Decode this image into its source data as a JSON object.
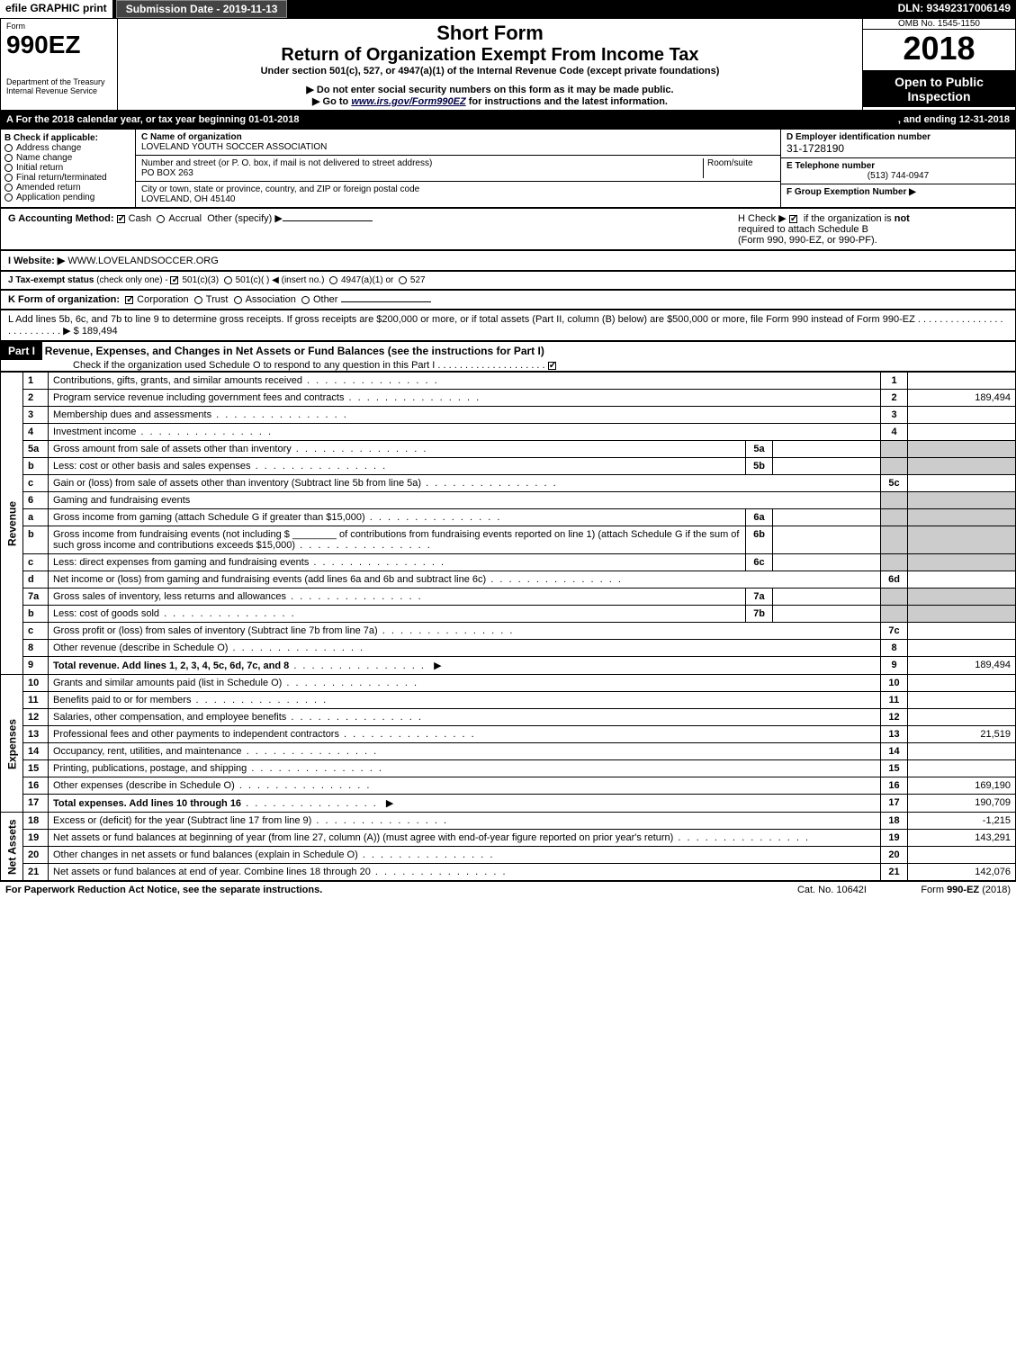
{
  "topbar": {
    "efile": "efile GRAPHIC print",
    "submission": "Submission Date - 2019-11-13",
    "dln": "DLN: 93492317006149"
  },
  "header": {
    "form_label": "Form",
    "form_number": "990EZ",
    "dept1": "Department of the Treasury",
    "dept2": "Internal Revenue Service",
    "short_form": "Short Form",
    "return_title": "Return of Organization Exempt From Income Tax",
    "under_section": "Under section 501(c), 527, or 4947(a)(1) of the Internal Revenue Code (except private foundations)",
    "note1": "▶ Do not enter social security numbers on this form as it may be made public.",
    "note2_pre": "▶ Go to ",
    "note2_link": "www.irs.gov/Form990EZ",
    "note2_post": " for instructions and the latest information.",
    "omb": "OMB No. 1545-1150",
    "year": "2018",
    "open_public": "Open to Public Inspection"
  },
  "section_a": {
    "label": "A  For the 2018 calendar year, or tax year beginning 01-01-2018",
    "ending": ", and ending 12-31-2018"
  },
  "section_b": {
    "heading": "B  Check if applicable:",
    "options": [
      "Address change",
      "Name change",
      "Initial return",
      "Final return/terminated",
      "Amended return",
      "Application pending"
    ]
  },
  "section_c": {
    "name_label": "C Name of organization",
    "org_name": "LOVELAND YOUTH SOCCER ASSOCIATION",
    "street_label": "Number and street (or P. O. box, if mail is not delivered to street address)",
    "room_label": "Room/suite",
    "street": "PO BOX 263",
    "city_label": "City or town, state or province, country, and ZIP or foreign postal code",
    "city": "LOVELAND, OH  45140"
  },
  "section_d": {
    "label": "D Employer identification number",
    "ein": "31-1728190",
    "tel_label": "E Telephone number",
    "phone": "(513) 744-0947",
    "group_label": "F Group Exemption Number   ▶"
  },
  "row_g": {
    "label": "G Accounting Method:",
    "cash": "Cash",
    "accrual": "Accrual",
    "other": "Other (specify) ▶"
  },
  "row_h": {
    "label_pre": "H  Check ▶ ",
    "label_post": " if the organization is ",
    "label_bold": "not",
    "line2": "required to attach Schedule B",
    "line3": "(Form 990, 990-EZ, or 990-PF)."
  },
  "row_i": {
    "label": "I Website: ▶",
    "value": "WWW.LOVELANDSOCCER.ORG"
  },
  "row_j": {
    "label": "J Tax-exempt status",
    "small": "(check only one) -",
    "opt1": "501(c)(3)",
    "opt2": "501(c)(  ) ◀ (insert no.)",
    "opt3": "4947(a)(1) or",
    "opt4": "527"
  },
  "row_k": {
    "label": "K Form of organization:",
    "opts": [
      "Corporation",
      "Trust",
      "Association",
      "Other"
    ]
  },
  "row_l": {
    "text": "L Add lines 5b, 6c, and 7b to line 9 to determine gross receipts. If gross receipts are $200,000 or more, or if total assets (Part II, column (B) below) are $500,000 or more, file Form 990 instead of Form 990-EZ  .   .   .   .   .   .   .   .   .   .   .   .   .   .   .   .   .   .   .   .   .   .   .   .   .   .  ▶ $ 189,494"
  },
  "part1": {
    "part_label": "Part I",
    "title": "Revenue, Expenses, and Changes in Net Assets or Fund Balances (see the instructions for Part I)",
    "check_note": "Check if the organization used Schedule O to respond to any question in this Part I  .   .   .   .   .   .   .   .   .   .   .   .   .   .   .   .   .   .   .   ."
  },
  "sections": {
    "revenue": "Revenue",
    "expenses": "Expenses",
    "netassets": "Net Assets"
  },
  "lines": [
    {
      "n": "1",
      "d": "Contributions, gifts, grants, and similar amounts received",
      "col": "1",
      "amt": ""
    },
    {
      "n": "2",
      "d": "Program service revenue including government fees and contracts",
      "col": "2",
      "amt": "189,494"
    },
    {
      "n": "3",
      "d": "Membership dues and assessments",
      "col": "3",
      "amt": ""
    },
    {
      "n": "4",
      "d": "Investment income",
      "col": "4",
      "amt": ""
    },
    {
      "n": "5a",
      "d": "Gross amount from sale of assets other than inventory",
      "mid": "5a",
      "midv": "",
      "shade": true
    },
    {
      "n": "b",
      "d": "Less: cost or other basis and sales expenses",
      "mid": "5b",
      "midv": "",
      "shade": true
    },
    {
      "n": "c",
      "d": "Gain or (loss) from sale of assets other than inventory (Subtract line 5b from line 5a)",
      "col": "5c",
      "amt": ""
    },
    {
      "n": "6",
      "d": "Gaming and fundraising events",
      "shade": true,
      "noamtcol": true
    },
    {
      "n": "a",
      "d": "Gross income from gaming (attach Schedule G if greater than $15,000)",
      "mid": "6a",
      "midv": "",
      "shade": true
    },
    {
      "n": "b",
      "d": "Gross income from fundraising events (not including $ ________ of contributions from fundraising events reported on line 1) (attach Schedule G if the sum of such gross income and contributions exceeds $15,000)",
      "mid": "6b",
      "midv": "",
      "shade": true,
      "tall": true
    },
    {
      "n": "c",
      "d": "Less: direct expenses from gaming and fundraising events",
      "mid": "6c",
      "midv": "",
      "shade": true
    },
    {
      "n": "d",
      "d": "Net income or (loss) from gaming and fundraising events (add lines 6a and 6b and subtract line 6c)",
      "col": "6d",
      "amt": ""
    },
    {
      "n": "7a",
      "d": "Gross sales of inventory, less returns and allowances",
      "mid": "7a",
      "midv": "",
      "shade": true
    },
    {
      "n": "b",
      "d": "Less: cost of goods sold",
      "mid": "7b",
      "midv": "",
      "shade": true
    },
    {
      "n": "c",
      "d": "Gross profit or (loss) from sales of inventory (Subtract line 7b from line 7a)",
      "col": "7c",
      "amt": ""
    },
    {
      "n": "8",
      "d": "Other revenue (describe in Schedule O)",
      "col": "8",
      "amt": ""
    },
    {
      "n": "9",
      "d": "Total revenue. Add lines 1, 2, 3, 4, 5c, 6d, 7c, and 8",
      "col": "9",
      "amt": "189,494",
      "bold": true,
      "arrow": true
    }
  ],
  "exp_lines": [
    {
      "n": "10",
      "d": "Grants and similar amounts paid (list in Schedule O)",
      "col": "10",
      "amt": ""
    },
    {
      "n": "11",
      "d": "Benefits paid to or for members",
      "col": "11",
      "amt": ""
    },
    {
      "n": "12",
      "d": "Salaries, other compensation, and employee benefits",
      "col": "12",
      "amt": ""
    },
    {
      "n": "13",
      "d": "Professional fees and other payments to independent contractors",
      "col": "13",
      "amt": "21,519"
    },
    {
      "n": "14",
      "d": "Occupancy, rent, utilities, and maintenance",
      "col": "14",
      "amt": ""
    },
    {
      "n": "15",
      "d": "Printing, publications, postage, and shipping",
      "col": "15",
      "amt": ""
    },
    {
      "n": "16",
      "d": "Other expenses (describe in Schedule O)",
      "col": "16",
      "amt": "169,190"
    },
    {
      "n": "17",
      "d": "Total expenses. Add lines 10 through 16",
      "col": "17",
      "amt": "190,709",
      "bold": true,
      "arrow": true
    }
  ],
  "net_lines": [
    {
      "n": "18",
      "d": "Excess or (deficit) for the year (Subtract line 17 from line 9)",
      "col": "18",
      "amt": "-1,215"
    },
    {
      "n": "19",
      "d": "Net assets or fund balances at beginning of year (from line 27, column (A)) (must agree with end-of-year figure reported on prior year's return)",
      "col": "19",
      "amt": "143,291",
      "tall": true
    },
    {
      "n": "20",
      "d": "Other changes in net assets or fund balances (explain in Schedule O)",
      "col": "20",
      "amt": ""
    },
    {
      "n": "21",
      "d": "Net assets or fund balances at end of year. Combine lines 18 through 20",
      "col": "21",
      "amt": "142,076"
    }
  ],
  "footer": {
    "left": "For Paperwork Reduction Act Notice, see the separate instructions.",
    "mid": "Cat. No. 10642I",
    "right_pre": "Form ",
    "right_bold": "990-EZ",
    "right_post": " (2018)"
  }
}
